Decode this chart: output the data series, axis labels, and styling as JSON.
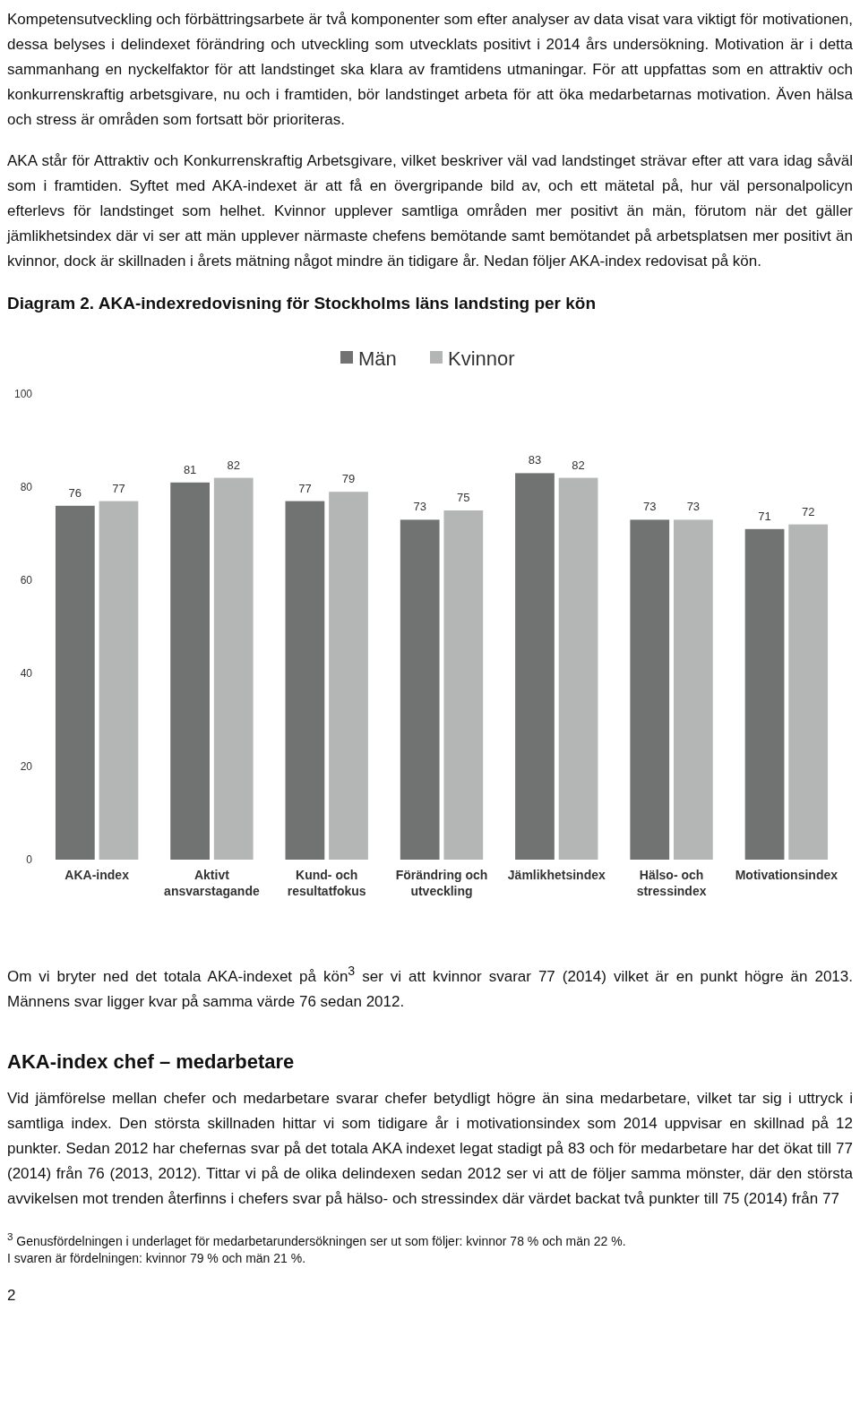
{
  "chart_data": {
    "type": "bar",
    "title": "Diagram 2. AKA-indexredovisning för Stockholms läns landsting per kön",
    "categories": [
      "AKA-index",
      "Aktivt ansvarstagande",
      "Kund- och resultatfokus",
      "Förändring och utveckling",
      "Jämlikhetsindex",
      "Hälso- och stressindex",
      "Motivationsindex"
    ],
    "series": [
      {
        "name": "Män",
        "color": "#707372",
        "values": [
          76,
          81,
          77,
          73,
          83,
          73,
          71
        ]
      },
      {
        "name": "Kvinnor",
        "color": "#b4b6b5",
        "values": [
          77,
          82,
          79,
          75,
          82,
          73,
          72
        ]
      }
    ],
    "ylim": [
      0,
      100
    ],
    "yticks": [
      0,
      20,
      40,
      60,
      80,
      100
    ],
    "data_labels": true,
    "legend": "top",
    "grid": false,
    "annotations": [
      "Kompetensutveckling och förbättringsarbete är två komponenter som efter analyser av data visat vara viktigt för motivationen, dessa belyses i delindexet förändring och utveckling som utvecklats positivt i 2014 års undersökning. Motivation är i detta sammanhang en nyckelfaktor för att landstinget ska klara av framtidens utmaningar. För att uppfattas som en attraktiv och konkurrenskraftig arbetsgivare, nu och i framtiden, bör landstinget arbeta för att öka medarbetarnas motivation. Även hälsa och stress är områden som fortsatt bör prioriteras.",
      "AKA står för Attraktiv och Konkurrenskraftig Arbetsgivare, vilket beskriver väl vad landstinget strävar efter att vara idag såväl som i framtiden. Syftet med AKA-indexet är att få en övergripande bild av, och ett mätetal på, hur väl personalpolicyn efterlevs för landstinget som helhet. Kvinnor upplever samtliga områden mer positivt än män, förutom när det gäller jämlikhetsindex där vi ser att män upplever närmaste chefens bemötande samt bemötandet på arbetsplatsen mer positivt än kvinnor, dock är skillnaden i årets mätning något mindre än tidigare år. Nedan följer AKA-index redovisat på kön.",
      "Om vi bryter ned det totala AKA-indexet på kön$^{3}$ ser vi att kvinnor svarar 77 (2014) vilket är en punkt högre än 2013. Männens svar ligger kvar på samma värde 76 sedan 2012.",
      "AKA-index chef – medarbetare",
      "Vid jämförelse mellan chefer och medarbetare svarar chefer betydligt högre än sina medarbetare, vilket tar sig i uttryck i samtliga index. Den största skillnaden hittar vi som tidigare år i motivationsindex som 2014 uppvisar en skillnad på 12 punkter. Sedan 2012 har chefernas svar på det totala AKA indexet legat stadigt på 83 och för medarbetare har det ökat till 77 (2014) från 76 (2013, 2012). Tittar vi på de olika delindexen sedan 2012 ser vi att de följer samma mönster, där den största avvikelsen mot trenden återfinns i chefers svar på hälso- och stressindex där värdet backat två punkter till 75 (2014) från 77",
      "$^{3}$ Genusfördelningen i underlaget för medarbetarundersökningen ser ut som följer: kvinnor 78 % och män 22 %.",
      "I svaren är fördelningen: kvinnor 79 % och män 21 %.",
      "2"
    ]
  }
}
